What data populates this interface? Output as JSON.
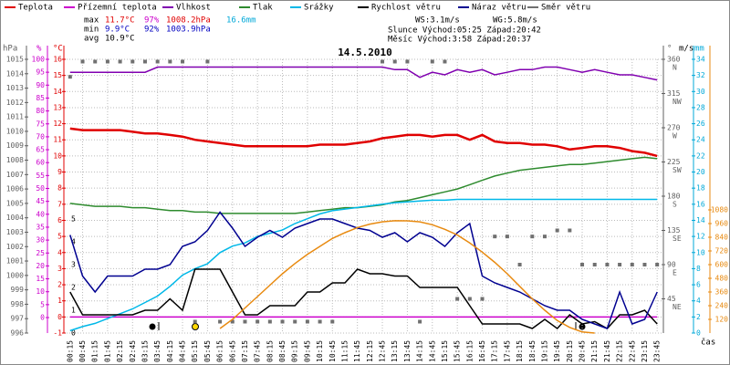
{
  "chart_data": {
    "type": "line",
    "title": "14.5.2010",
    "x_label": "čas",
    "categories": [
      "00:15",
      "00:45",
      "01:15",
      "01:45",
      "02:15",
      "02:45",
      "03:15",
      "03:45",
      "04:15",
      "04:45",
      "05:15",
      "05:45",
      "06:15",
      "06:45",
      "07:15",
      "07:45",
      "08:15",
      "08:45",
      "09:15",
      "09:45",
      "10:15",
      "10:45",
      "11:15",
      "11:45",
      "12:15",
      "12:45",
      "13:15",
      "13:45",
      "14:15",
      "14:45",
      "15:15",
      "15:45",
      "16:15",
      "16:45",
      "17:15",
      "17:45",
      "18:15",
      "18:45",
      "19:15",
      "19:45",
      "20:15",
      "20:45",
      "21:15",
      "21:45",
      "22:15",
      "22:45",
      "23:15",
      "23:45"
    ],
    "axes": {
      "hpa": {
        "label": "hPa",
        "color": "#606060",
        "lim": [
          996,
          1015
        ],
        "ticks": [
          996,
          997,
          998,
          999,
          1000,
          1001,
          1002,
          1003,
          1004,
          1005,
          1006,
          1007,
          1008,
          1009,
          1010,
          1011,
          1012,
          1013,
          1014,
          1015
        ]
      },
      "pct": {
        "label": "%",
        "color": "#cc00cc",
        "lim": [
          -6,
          100
        ],
        "ticks": [
          0,
          5,
          10,
          15,
          20,
          25,
          30,
          35,
          40,
          45,
          50,
          55,
          60,
          65,
          70,
          75,
          80,
          85,
          90,
          95,
          100
        ]
      },
      "tc": {
        "label": "°C",
        "color": "#e00000",
        "lim": [
          -1,
          16
        ],
        "ticks": [
          -1,
          0,
          1,
          2,
          3,
          4,
          5,
          6,
          7,
          8,
          9,
          10,
          11,
          12,
          13,
          14,
          15,
          16
        ]
      },
      "ms": {
        "label": "m/s",
        "color": "#000000",
        "lim": [
          0,
          12
        ],
        "ticks": [
          0,
          1,
          2,
          3,
          4,
          5
        ]
      },
      "dir": {
        "label": "°",
        "color": "#606060",
        "lim": [
          0,
          360
        ],
        "ticks": [
          45,
          90,
          135,
          180,
          225,
          270,
          315,
          360
        ],
        "compass": [
          "NE",
          "E",
          "SE",
          "S",
          "SW",
          "W",
          "NW",
          "N"
        ]
      },
      "mm": {
        "label": "mm",
        "color": "#00a8d8",
        "lim": [
          0,
          34
        ],
        "ticks": [
          0,
          2,
          4,
          6,
          8,
          10,
          12,
          14,
          16,
          18,
          20,
          22,
          24,
          26,
          28,
          30,
          32,
          34
        ]
      },
      "solar": {
        "color": "#e88a10",
        "lim": [
          0,
          2400
        ],
        "ticks": [
          120,
          240,
          360,
          480,
          600,
          720,
          840,
          960,
          1080
        ]
      }
    },
    "grid": true,
    "series": [
      {
        "name": "Teplota",
        "color": "#e00000",
        "axis": "tc",
        "values": [
          11.7,
          11.6,
          11.6,
          11.6,
          11.6,
          11.5,
          11.4,
          11.4,
          11.3,
          11.2,
          11.0,
          10.9,
          10.8,
          10.7,
          10.6,
          10.6,
          10.6,
          10.6,
          10.6,
          10.6,
          10.7,
          10.7,
          10.7,
          10.8,
          10.9,
          11.1,
          11.2,
          11.3,
          11.3,
          11.2,
          11.3,
          11.3,
          11.0,
          11.3,
          10.9,
          10.8,
          10.8,
          10.7,
          10.7,
          10.6,
          10.4,
          10.5,
          10.6,
          10.6,
          10.5,
          10.3,
          10.2,
          10.0
        ]
      },
      {
        "name": "Přízemní teplota",
        "color": "#cc00cc",
        "axis": "tc",
        "values": [
          0,
          0,
          0,
          0,
          0,
          0,
          0,
          0,
          0,
          0,
          0,
          0,
          0,
          0,
          0,
          0,
          0,
          0,
          0,
          0,
          0,
          0,
          0,
          0,
          0,
          0,
          0,
          0,
          0,
          0,
          0,
          0,
          0,
          0,
          0,
          0,
          0,
          0,
          0,
          0,
          0,
          0,
          0,
          0,
          0,
          0,
          0,
          0
        ]
      },
      {
        "name": "Vlhkost",
        "color": "#8000b0",
        "axis": "pct",
        "values": [
          95,
          95,
          95,
          95,
          95,
          95,
          95,
          97,
          97,
          97,
          97,
          97,
          97,
          97,
          97,
          97,
          97,
          97,
          97,
          97,
          97,
          97,
          97,
          97,
          97,
          97,
          96,
          96,
          93,
          95,
          94,
          96,
          95,
          96,
          94,
          95,
          96,
          96,
          97,
          97,
          96,
          95,
          96,
          95,
          94,
          94,
          93,
          92
        ]
      },
      {
        "name": "Tlak",
        "color": "#2e8b2e",
        "axis": "hpa",
        "values": [
          1005.0,
          1004.9,
          1004.8,
          1004.8,
          1004.8,
          1004.7,
          1004.7,
          1004.6,
          1004.5,
          1004.5,
          1004.4,
          1004.4,
          1004.3,
          1004.3,
          1004.3,
          1004.3,
          1004.3,
          1004.3,
          1004.3,
          1004.4,
          1004.5,
          1004.6,
          1004.7,
          1004.7,
          1004.8,
          1004.9,
          1005.1,
          1005.2,
          1005.4,
          1005.6,
          1005.8,
          1006.0,
          1006.3,
          1006.6,
          1006.9,
          1007.1,
          1007.3,
          1007.4,
          1007.5,
          1007.6,
          1007.7,
          1007.7,
          1007.8,
          1007.9,
          1008.0,
          1008.1,
          1008.2,
          1008.1
        ]
      },
      {
        "name": "Srážky",
        "color": "#00b8e8",
        "axis": "mm",
        "values": [
          0.3,
          0.8,
          1.2,
          1.8,
          2.4,
          3.0,
          3.8,
          4.6,
          5.8,
          7.2,
          8.0,
          8.6,
          10.0,
          10.8,
          11.2,
          12.0,
          12.4,
          12.8,
          13.6,
          14.2,
          14.8,
          15.2,
          15.4,
          15.6,
          15.8,
          16.0,
          16.2,
          16.3,
          16.4,
          16.5,
          16.5,
          16.6,
          16.6,
          16.6,
          16.6,
          16.6,
          16.6,
          16.6,
          16.6,
          16.6,
          16.6,
          16.6,
          16.6,
          16.6,
          16.6,
          16.6,
          16.6,
          16.6
        ]
      },
      {
        "name": "Rychlost větru",
        "color": "#000000",
        "axis": "ms",
        "values": [
          1.8,
          0.8,
          0.8,
          0.8,
          0.8,
          0.8,
          1.0,
          1.0,
          1.5,
          1.0,
          2.8,
          2.8,
          2.8,
          1.8,
          0.8,
          0.8,
          1.2,
          1.2,
          1.2,
          1.8,
          1.8,
          2.2,
          2.2,
          2.8,
          2.6,
          2.6,
          2.5,
          2.5,
          2.0,
          2.0,
          2.0,
          2.0,
          1.2,
          0.4,
          0.4,
          0.4,
          0.4,
          0.2,
          0.6,
          0.2,
          0.8,
          0.4,
          0.5,
          0.2,
          0.8,
          0.8,
          1.0,
          0.4
        ]
      },
      {
        "name": "Náraz větru",
        "color": "#000090",
        "axis": "ms",
        "values": [
          4.3,
          2.5,
          1.8,
          2.5,
          2.5,
          2.5,
          2.8,
          2.8,
          3.0,
          3.8,
          4.0,
          4.5,
          5.3,
          4.6,
          3.8,
          4.2,
          4.5,
          4.2,
          4.6,
          4.8,
          5.0,
          5.0,
          4.8,
          4.6,
          4.5,
          4.2,
          4.4,
          4.0,
          4.4,
          4.2,
          3.8,
          4.4,
          4.8,
          2.5,
          2.2,
          2.0,
          1.8,
          1.5,
          1.2,
          1.0,
          1.0,
          0.6,
          0.4,
          0.2,
          1.8,
          0.4,
          0.6,
          1.8
        ]
      },
      {
        "name": "Směr větru",
        "color": "#707070",
        "axis": "dir",
        "type": "points",
        "values": [
          337,
          357,
          357,
          357,
          357,
          357,
          357,
          357,
          357,
          357,
          15,
          357,
          15,
          15,
          15,
          15,
          15,
          15,
          15,
          15,
          15,
          15,
          null,
          null,
          null,
          357,
          357,
          357,
          15,
          357,
          357,
          45,
          45,
          45,
          127,
          127,
          90,
          127,
          127,
          135,
          135,
          90,
          90,
          90,
          90,
          90,
          90,
          90
        ]
      },
      {
        "color": "#e88a10",
        "axis": "solar",
        "values": [
          null,
          null,
          null,
          null,
          null,
          null,
          null,
          null,
          null,
          null,
          null,
          null,
          40,
          120,
          220,
          320,
          420,
          520,
          610,
          690,
          760,
          830,
          880,
          925,
          955,
          975,
          985,
          984,
          975,
          950,
          910,
          860,
          790,
          710,
          620,
          520,
          410,
          300,
          200,
          110,
          50,
          10,
          0,
          null,
          null,
          null,
          null,
          null
        ]
      }
    ],
    "stats": [
      [
        "max",
        "11.7°C",
        "97%",
        "1008.2hPa",
        "16.6mm"
      ],
      [
        "min",
        "9.9°C",
        "92%",
        "1003.9hPa"
      ],
      [
        "avg",
        "10.9°C"
      ]
    ],
    "info": {
      "ws": "WS:3.1m/s",
      "wg": "WG:5.8m/s",
      "sun": "Slunce Východ:05:25 Západ:20:42",
      "moon": "Měsíc  Východ:3:58  Západ:20:37"
    }
  }
}
